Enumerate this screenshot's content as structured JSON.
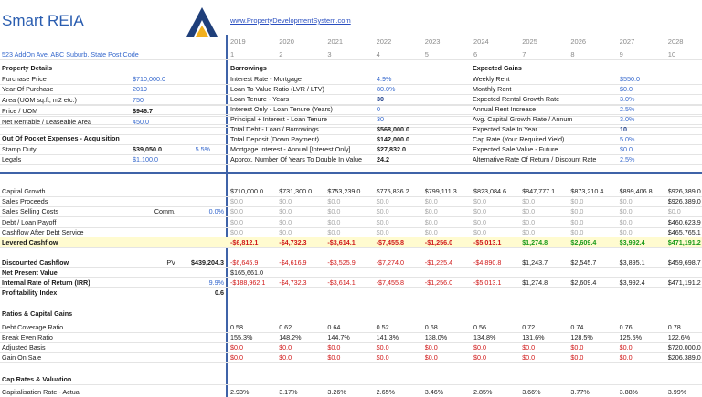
{
  "header": {
    "title": "Smart REIA",
    "link": "www.PropertyDevelopmentSystem.com",
    "address": "523 AddOn Ave, ABC Suburb, State Post Code"
  },
  "years": [
    "2019",
    "2020",
    "2021",
    "2022",
    "2023",
    "2024",
    "2025",
    "2026",
    "2027",
    "2028"
  ],
  "periods": [
    "1",
    "2",
    "3",
    "4",
    "5",
    "6",
    "7",
    "8",
    "9",
    "10"
  ],
  "property_details": {
    "title": "Property Details",
    "rows": [
      {
        "label": "Purchase Price",
        "value": "$710,000.0"
      },
      {
        "label": "Year Of Purchase",
        "value": "2019"
      },
      {
        "label": "Area (UOM sq.ft, m2 etc.)",
        "value": "750"
      },
      {
        "label": "Price / UOM",
        "value": "$946.7",
        "color": "#1a1a1a"
      },
      {
        "label": "Net Rentable / Leaseable Area",
        "value": "450.0"
      }
    ]
  },
  "acquisition": {
    "title": "Out Of Pocket Expenses - Acquisition",
    "rows": [
      {
        "label": "Stamp Duty",
        "value": "$39,050.0",
        "color": "#1a1a1a",
        "extra": "5.5%"
      },
      {
        "label": "Legals",
        "value": "$1,100.0"
      }
    ]
  },
  "borrowings": {
    "title": "Borrowings",
    "rows": [
      {
        "label": "Interest Rate - Mortgage",
        "value": "4.9%"
      },
      {
        "label": "Loan To Value Ratio (LVR / LTV)",
        "value": "80.0%"
      },
      {
        "label": "Loan Tenure - Years",
        "value": "30",
        "color": "#1f3f8a"
      },
      {
        "label": "Interest Only - Loan Tenure (Years)",
        "value": "0"
      },
      {
        "label": "Principal + Interest - Loan Tenure",
        "value": "30"
      },
      {
        "label": "Total Debt - Loan / Borrowings",
        "value": "$568,000.0",
        "color": "#1a1a1a"
      },
      {
        "label": "Total Deposit (Down Payment)",
        "value": "$142,000.0",
        "color": "#1a1a1a"
      },
      {
        "label": "Mortgage Interest - Annual [Interest Only]",
        "value": "$27,832.0",
        "color": "#1a1a1a"
      },
      {
        "label": "Approx. Number Of Years To Double In Value",
        "value": "24.2",
        "color": "#1a1a1a"
      }
    ]
  },
  "expected_gains": {
    "title": "Expected Gains",
    "rows": [
      {
        "label": "Weekly Rent",
        "value": "$550.0"
      },
      {
        "label": "Monthly Rent",
        "value": "$0.0"
      },
      {
        "label": "Expected Rental Growth Rate",
        "value": "3.0%"
      },
      {
        "label": "Annual Rent Increase",
        "value": "2.5%"
      },
      {
        "label": "Avg. Capital Growth Rate / Annum",
        "value": "3.0%"
      },
      {
        "label": "Expected Sale In Year",
        "value": "10",
        "color": "#1f3f8a"
      },
      {
        "label": "Cap Rate (Your Required Yield)",
        "value": "5.0%"
      },
      {
        "label": "Expected Sale Value - Future",
        "value": "$0.0"
      },
      {
        "label": "Alternative Rate Of Return / Discount Rate",
        "value": "2.5%"
      }
    ]
  },
  "cashflow": {
    "rows": [
      {
        "label": "Capital Growth",
        "values": [
          "$710,000.0",
          "$731,300.0",
          "$753,239.0",
          "$775,836.2",
          "$799,111.3",
          "$823,084.6",
          "$847,777.1",
          "$873,210.4",
          "$899,406.8",
          "$926,389.0"
        ]
      },
      {
        "label": "Sales Proceeds",
        "values": [
          "$0.0",
          "$0.0",
          "$0.0",
          "$0.0",
          "$0.0",
          "$0.0",
          "$0.0",
          "$0.0",
          "$0.0",
          "$926,389.0"
        ]
      },
      {
        "label": "Sales Selling Costs",
        "note": "Comm.",
        "input": "0.0%",
        "values": [
          "$0.0",
          "$0.0",
          "$0.0",
          "$0.0",
          "$0.0",
          "$0.0",
          "$0.0",
          "$0.0",
          "$0.0",
          "$0.0"
        ]
      },
      {
        "label": "Debt / Loan Payoff",
        "values": [
          "$0.0",
          "$0.0",
          "$0.0",
          "$0.0",
          "$0.0",
          "$0.0",
          "$0.0",
          "$0.0",
          "$0.0",
          "$460,623.9"
        ]
      },
      {
        "label": "Cashflow After Debt Service",
        "values": [
          "$0.0",
          "$0.0",
          "$0.0",
          "$0.0",
          "$0.0",
          "$0.0",
          "$0.0",
          "$0.0",
          "$0.0",
          "$465,765.1"
        ]
      },
      {
        "label": "Levered Cashflow",
        "highlight": "#fffbd0",
        "values": [
          "-$6,812.1",
          "-$4,732.3",
          "-$3,614.1",
          "-$7,455.8",
          "-$1,256.0",
          "-$5,013.1",
          "$1,274.8",
          "$2,609.4",
          "$3,992.4",
          "$471,191.2"
        ]
      }
    ]
  },
  "returns": {
    "rows": [
      {
        "label": "Discounted Cashflow",
        "note": "PV",
        "input": "$439,204.3",
        "values": [
          "-$6,645.9",
          "-$4,616.9",
          "-$3,525.9",
          "-$7,274.0",
          "-$1,225.4",
          "-$4,890.8",
          "$1,243.7",
          "$2,545.7",
          "$3,895.1",
          "$459,698.7"
        ]
      },
      {
        "label": "Net Present Value",
        "values": [
          "$165,661.0"
        ]
      },
      {
        "label": "Internal Rate of Return (IRR)",
        "input": "9.9%",
        "values": [
          "-$188,962.1",
          "-$4,732.3",
          "-$3,614.1",
          "-$7,455.8",
          "-$1,256.0",
          "-$5,013.1",
          "$1,274.8",
          "$2,609.4",
          "$3,992.4",
          "$471,191.2"
        ]
      },
      {
        "label": "Profitability Index",
        "input": "0.6",
        "values": []
      }
    ]
  },
  "ratios": {
    "title": "Ratios & Capital Gains",
    "rows": [
      {
        "label": "Debt Coverage Ratio",
        "values": [
          "0.58",
          "0.62",
          "0.64",
          "0.52",
          "0.68",
          "0.56",
          "0.72",
          "0.74",
          "0.76",
          "0.78"
        ]
      },
      {
        "label": "Break Even Ratio",
        "values": [
          "155.3%",
          "148.2%",
          "144.7%",
          "141.3%",
          "138.0%",
          "134.8%",
          "131.6%",
          "128.5%",
          "125.5%",
          "122.6%"
        ]
      },
      {
        "label": "Adjusted Basis",
        "values": [
          "$0.0",
          "$0.0",
          "$0.0",
          "$0.0",
          "$0.0",
          "$0.0",
          "$0.0",
          "$0.0",
          "$0.0",
          "$720,000.0"
        ]
      },
      {
        "label": "Gain On Sale",
        "values": [
          "$0.0",
          "$0.0",
          "$0.0",
          "$0.0",
          "$0.0",
          "$0.0",
          "$0.0",
          "$0.0",
          "$0.0",
          "$206,389.0"
        ]
      }
    ]
  },
  "cap_rates": {
    "title": "Cap Rates & Valuation",
    "rows": [
      {
        "label": "Capitalisation Rate - Actual",
        "values": [
          "2.93%",
          "3.17%",
          "3.26%",
          "2.65%",
          "3.46%",
          "2.85%",
          "3.66%",
          "3.77%",
          "3.88%",
          "3.99%"
        ]
      }
    ]
  }
}
